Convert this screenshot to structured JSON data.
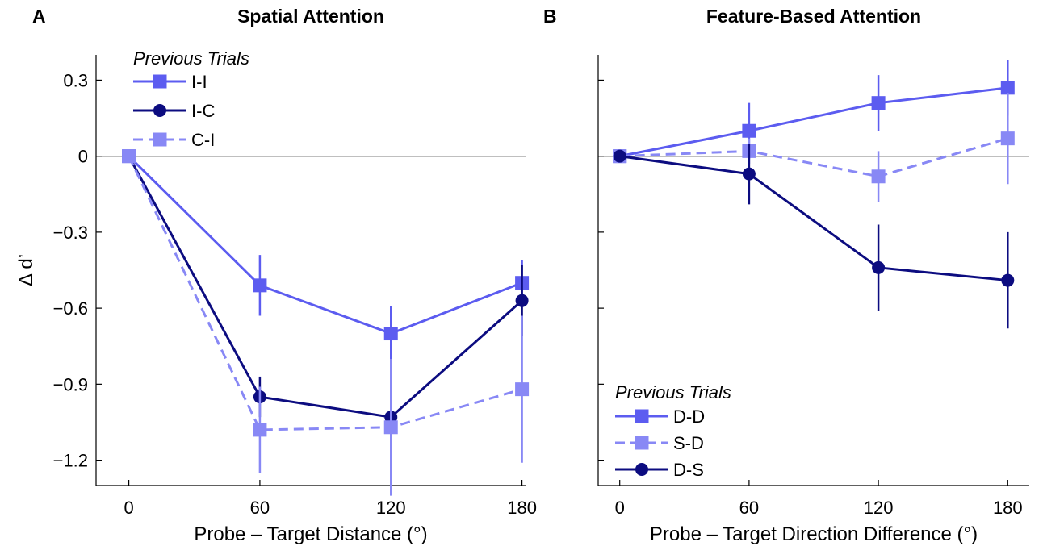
{
  "colors": {
    "mid_blue": "#5c5cf0",
    "navy": "#0c0c80",
    "light_blue": "#8888f5"
  },
  "chart_data": [
    {
      "type": "line",
      "panel_letter": "A",
      "title": "Spatial Attention",
      "xlabel": "Probe – Target Distance (°)",
      "ylabel": "Δ d’",
      "x": [
        0,
        60,
        120,
        180
      ],
      "x_tick_labels": [
        "0",
        "60",
        "120",
        "180"
      ],
      "xlim": [
        -15,
        182
      ],
      "ylim": [
        -1.3,
        0.4
      ],
      "y_ticks": [
        0.3,
        0,
        -0.3,
        -0.6,
        -0.9,
        -1.2
      ],
      "y_tick_labels": [
        "0.3",
        "0",
        "−0.3",
        "−0.6",
        "−0.9",
        "−1.2"
      ],
      "reference_line": 0,
      "grid": false,
      "legend_title": "Previous Trials",
      "legend_position": "top-left",
      "series": [
        {
          "name": "I-I",
          "values": [
            0,
            -0.51,
            -0.7,
            -0.5
          ],
          "errors": [
            0,
            0.12,
            0.11,
            0.09
          ],
          "marker": "square",
          "dashed": false,
          "color": "#5c5cf0"
        },
        {
          "name": "I-C",
          "values": [
            0,
            -0.95,
            -1.03,
            -0.57
          ],
          "errors": [
            0,
            0.08,
            0.13,
            0.14
          ],
          "marker": "circle",
          "dashed": false,
          "color": "#0c0c80"
        },
        {
          "name": "C-I",
          "values": [
            0,
            -1.08,
            -1.07,
            -0.92
          ],
          "errors": [
            0,
            0.17,
            0.27,
            0.29
          ],
          "marker": "square",
          "dashed": true,
          "color": "#8888f5"
        }
      ]
    },
    {
      "type": "line",
      "panel_letter": "B",
      "title": "Feature-Based Attention",
      "xlabel": "Probe – Target Direction Difference (°)",
      "ylabel": "",
      "x": [
        0,
        60,
        120,
        180
      ],
      "x_tick_labels": [
        "0",
        "60",
        "120",
        "180"
      ],
      "xlim": [
        -10,
        190
      ],
      "ylim": [
        -1.3,
        0.4
      ],
      "y_ticks": [
        0.3,
        0,
        -0.3,
        -0.6,
        -0.9,
        -1.2
      ],
      "y_tick_labels": [],
      "reference_line": 0,
      "grid": false,
      "legend_title": "Previous Trials",
      "legend_position": "bottom-left",
      "series": [
        {
          "name": "D-D",
          "values": [
            0,
            0.1,
            0.21,
            0.27
          ],
          "errors": [
            0,
            0.11,
            0.11,
            0.11
          ],
          "marker": "square",
          "dashed": false,
          "color": "#5c5cf0"
        },
        {
          "name": "S-D",
          "values": [
            0,
            0.02,
            -0.08,
            0.07
          ],
          "errors": [
            0,
            0.05,
            0.1,
            0.18
          ],
          "marker": "square",
          "dashed": true,
          "color": "#8888f5"
        },
        {
          "name": "D-S",
          "values": [
            0,
            -0.07,
            -0.44,
            -0.49
          ],
          "errors": [
            0,
            0.12,
            0.17,
            0.19
          ],
          "marker": "circle",
          "dashed": false,
          "color": "#0c0c80"
        }
      ]
    }
  ]
}
